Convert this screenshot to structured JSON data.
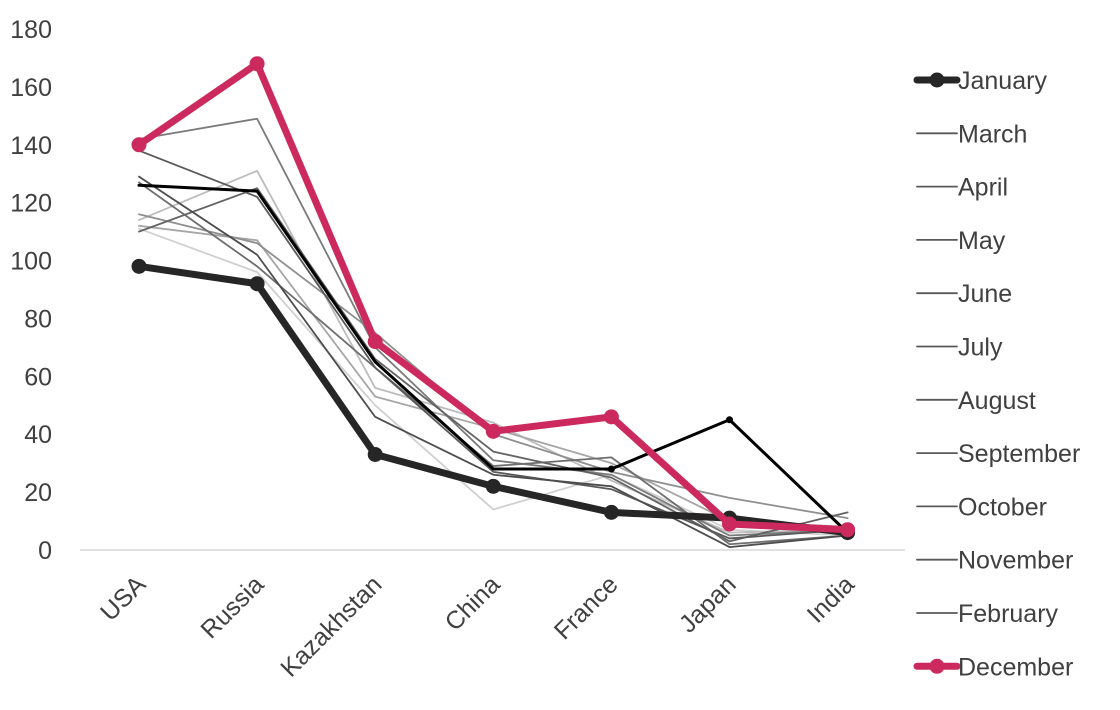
{
  "chart_data": {
    "type": "line",
    "title": "",
    "xlabel": "",
    "ylabel": "",
    "categories": [
      "USA",
      "Russia",
      "Kazakhstan",
      "China",
      "France",
      "Japan",
      "India"
    ],
    "ylim": [
      0,
      180
    ],
    "yticks": [
      0,
      20,
      40,
      60,
      80,
      100,
      120,
      140,
      160,
      180
    ],
    "grid": false,
    "legend_position": "right",
    "series": [
      {
        "name": "January",
        "values": [
          98,
          92,
          33,
          22,
          13,
          11,
          6
        ],
        "color": "#262626",
        "style": "bold-markers"
      },
      {
        "name": "March",
        "values": [
          126,
          124,
          65,
          28,
          28,
          45,
          6
        ],
        "color": "#000000",
        "style": "line"
      },
      {
        "name": "April",
        "values": [
          129,
          102,
          46,
          26,
          22,
          1,
          5
        ],
        "color": "#4d4d4d",
        "style": "line"
      },
      {
        "name": "May",
        "values": [
          138,
          122,
          63,
          27,
          21,
          4,
          7
        ],
        "color": "#595959",
        "style": "line"
      },
      {
        "name": "June",
        "values": [
          110,
          125,
          66,
          34,
          25,
          3,
          13
        ],
        "color": "#636363",
        "style": "line"
      },
      {
        "name": "July",
        "values": [
          127,
          98,
          63,
          29,
          32,
          2,
          5
        ],
        "color": "#6e6e6e",
        "style": "line"
      },
      {
        "name": "August",
        "values": [
          142,
          149,
          70,
          31,
          26,
          5,
          7
        ],
        "color": "#7a7a7a",
        "style": "line"
      },
      {
        "name": "September",
        "values": [
          116,
          106,
          75,
          40,
          27,
          18,
          11
        ],
        "color": "#8f8f8f",
        "style": "line"
      },
      {
        "name": "October",
        "values": [
          112,
          107,
          53,
          42,
          30,
          10,
          8
        ],
        "color": "#a6a6a6",
        "style": "line"
      },
      {
        "name": "November",
        "values": [
          114,
          131,
          56,
          44,
          24,
          6,
          7
        ],
        "color": "#bcbcbc",
        "style": "line"
      },
      {
        "name": "February",
        "values": [
          111,
          96,
          50,
          14,
          26,
          7,
          5
        ],
        "color": "#d0d0d0",
        "style": "line"
      },
      {
        "name": "December",
        "values": [
          140,
          168,
          72,
          41,
          46,
          9,
          7
        ],
        "color": "#cc2a5e",
        "style": "bold-markers"
      }
    ],
    "legend_order": [
      "January",
      "March",
      "April",
      "May",
      "June",
      "July",
      "August",
      "September",
      "October",
      "November",
      "February",
      "December"
    ]
  }
}
